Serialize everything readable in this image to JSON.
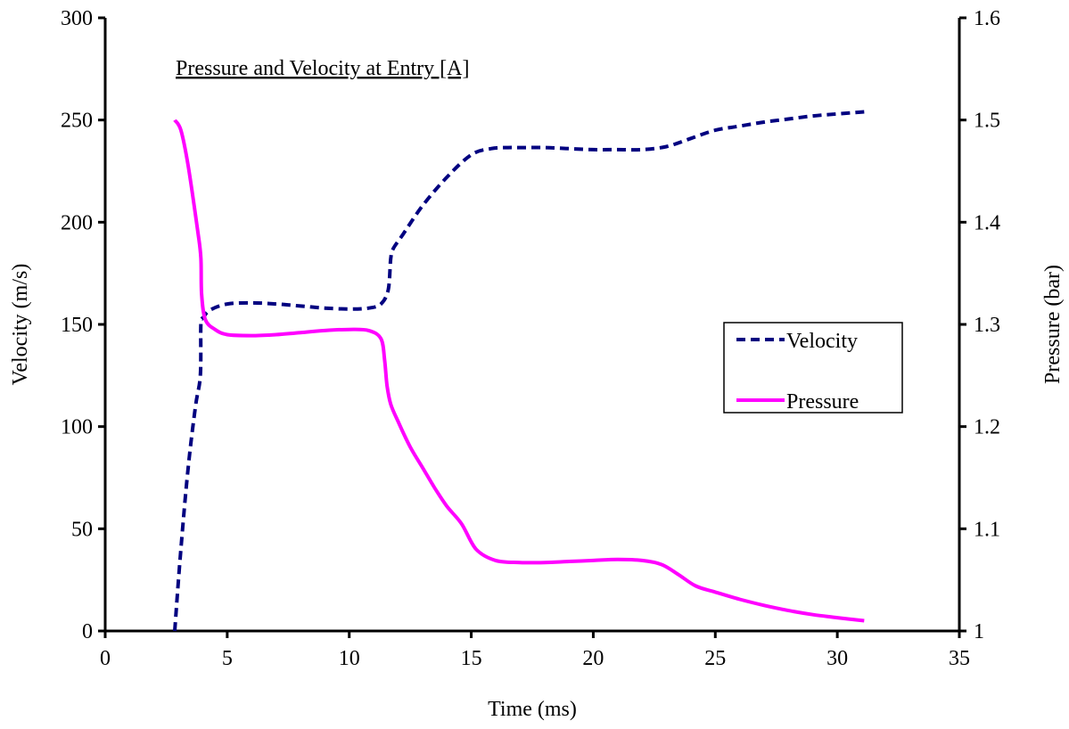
{
  "chart_data": {
    "type": "line",
    "title": "Pressure and Velocity at Entry [A]",
    "xlabel": "Time (ms)",
    "ylabel": "Velocity (m/s)",
    "y2label": "Pressure (bar)",
    "xlim": [
      0,
      35
    ],
    "ylim": [
      0,
      300
    ],
    "y2lim": [
      1,
      1.6
    ],
    "xticks": [
      "0",
      "5",
      "10",
      "15",
      "20",
      "25",
      "30",
      "35"
    ],
    "yticks": [
      "0",
      "50",
      "100",
      "150",
      "200",
      "250",
      "300"
    ],
    "y2ticks": [
      "1",
      "1.1",
      "1.2",
      "1.3",
      "1.4",
      "1.5",
      "1.6"
    ],
    "grid": false,
    "legend_position": "right",
    "series": [
      {
        "name": "Velocity",
        "axis": "left",
        "color": "#000080",
        "style": "dashed",
        "x": [
          2.85,
          3.1,
          3.4,
          3.7,
          3.9,
          3.92,
          4.0,
          4.3,
          5.0,
          6.0,
          7.0,
          8.0,
          9.0,
          10.0,
          10.8,
          11.3,
          11.6,
          11.7,
          11.8,
          12.2,
          13.0,
          14.0,
          15.0,
          15.8,
          16.5,
          17.0,
          18.0,
          19.0,
          20.0,
          21.0,
          22.0,
          23.0,
          24.0,
          25.0,
          26.0,
          27.0,
          28.0,
          29.0,
          30.0,
          31.1
        ],
        "values": [
          0,
          40,
          80,
          110,
          125,
          150,
          153,
          157,
          160,
          160.5,
          160,
          159,
          158,
          157.5,
          158,
          160,
          167,
          182,
          187,
          194,
          208,
          222,
          233,
          236,
          236.5,
          236.5,
          236.5,
          236,
          235.5,
          235.5,
          235.5,
          237,
          241,
          245,
          247,
          249,
          250.5,
          252,
          253,
          254
        ]
      },
      {
        "name": "Pressure",
        "axis": "right",
        "color": "#ff00ff",
        "style": "solid",
        "x": [
          2.85,
          3.1,
          3.4,
          3.8,
          3.92,
          3.95,
          4.1,
          4.5,
          5.0,
          6.0,
          7.0,
          8.0,
          9.0,
          10.0,
          10.8,
          11.3,
          11.45,
          11.55,
          11.7,
          12.0,
          12.5,
          13.0,
          13.5,
          14.0,
          14.6,
          15.2,
          16.0,
          17.0,
          18.0,
          19.0,
          20.0,
          21.0,
          22.0,
          22.8,
          23.5,
          24.2,
          25.0,
          26.0,
          27.0,
          28.0,
          29.0,
          30.0,
          31.1
        ],
        "values": [
          1.5,
          1.49,
          1.455,
          1.39,
          1.365,
          1.33,
          1.305,
          1.295,
          1.29,
          1.289,
          1.29,
          1.292,
          1.294,
          1.295,
          1.294,
          1.286,
          1.265,
          1.24,
          1.222,
          1.205,
          1.18,
          1.16,
          1.14,
          1.122,
          1.105,
          1.08,
          1.069,
          1.067,
          1.067,
          1.068,
          1.069,
          1.07,
          1.069,
          1.065,
          1.055,
          1.044,
          1.038,
          1.031,
          1.025,
          1.02,
          1.016,
          1.013,
          1.01
        ]
      }
    ]
  }
}
